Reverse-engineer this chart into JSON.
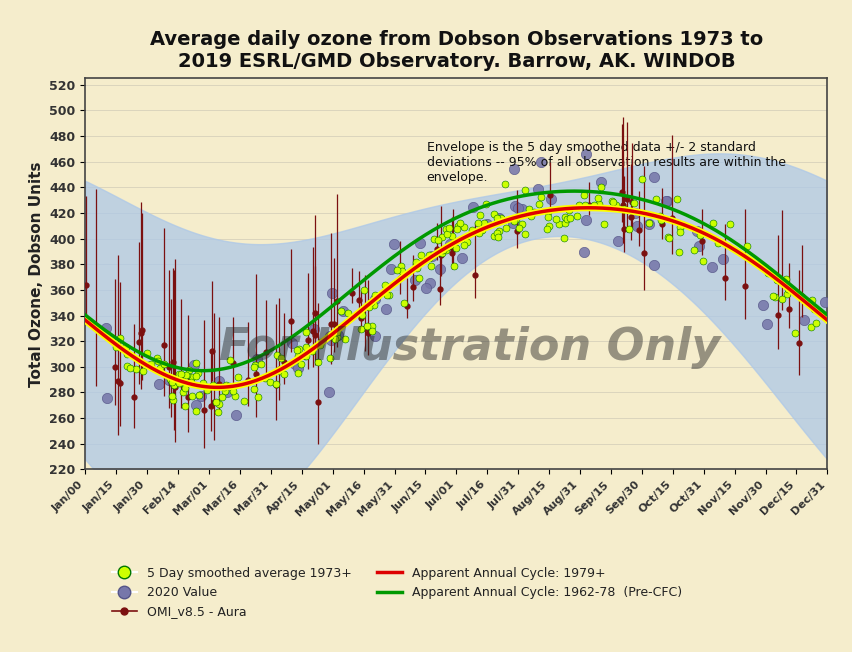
{
  "title": "Average daily ozone from Dobson Observations 1973 to\n2019 ESRL/GMD Observatory. Barrow, AK. WINDOB",
  "ylabel": "Total Ozone, Dobson Units",
  "ylim": [
    220,
    525
  ],
  "yticks": [
    220,
    240,
    260,
    280,
    300,
    320,
    340,
    360,
    380,
    400,
    420,
    440,
    460,
    480,
    500,
    520
  ],
  "background_color": "#F5EDCC",
  "plot_bg_color": "#F5EDCC",
  "envelope_color": "#ADC8E8",
  "envelope_alpha": 0.75,
  "annotation_text": "Envelope is the 5 day smoothed data +/- 2 standard\ndeviations -- 95% of all observation results are within the\nenvelope.",
  "watermark": "For Illustration Only",
  "xtick_labels": [
    "Jan/00",
    "Jan/15",
    "Jan/30",
    "Feb/14",
    "Mar/01",
    "Mar/16",
    "Mar/31",
    "Apr/15",
    "May/01",
    "May/16",
    "May/31",
    "Jun/15",
    "Jul/01",
    "Jul/16",
    "Jul/31",
    "Aug/15",
    "Aug/31",
    "Sep/15",
    "Sep/30",
    "Oct/15",
    "Oct/31",
    "Nov/15",
    "Nov/30",
    "Dec/15",
    "Dec/31"
  ],
  "smoothed_color": "#CCFF00",
  "smoothed_edge_color": "#007700",
  "omi_color": "#7B1010",
  "cycle1979_color": "#DD0000",
  "cycle1962_color": "#009900",
  "obs2020_color": "#7777AA",
  "title_fontsize": 14,
  "legend_entries": [
    "5 Day smoothed average 1973+",
    "2020 Value",
    "OMI_v8.5 - Aura",
    "Apparent Annual Cycle: 1979+",
    "Apparent Annual Cycle: 1962-78  (Pre-CFC)"
  ]
}
